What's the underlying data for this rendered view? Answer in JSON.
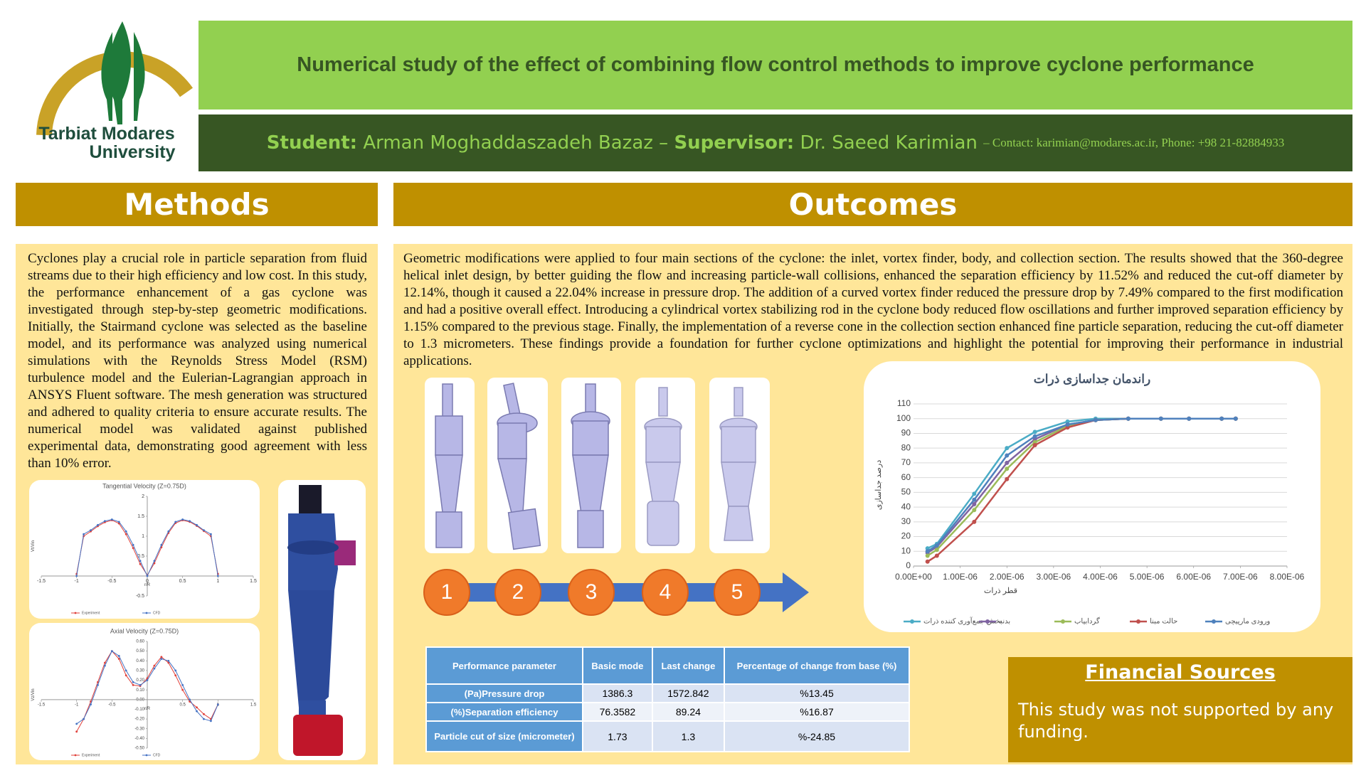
{
  "logo": {
    "line1": "Tarbiat Modares",
    "line2": "University"
  },
  "header": {
    "title": "Numerical study of the effect of combining flow control methods to improve cyclone performance",
    "student_label": "Student:",
    "student": "Arman Moghaddaszadeh Bazaz –",
    "supervisor_label": "Supervisor:",
    "supervisor": "Dr. Saeed Karimian",
    "contact": "– Contact: karimian@modares.ac.ir, Phone: +98 21-82884933"
  },
  "methods": {
    "title": "Methods",
    "text": "Cyclones play a crucial role in particle separation from fluid streams due to their high efficiency and low cost. In this study, the performance enhancement of a gas cyclone was investigated through step-by-step geometric modifications. Initially, the Stairmand cyclone was selected as the baseline model, and its performance was analyzed using numerical simulations with the Reynolds Stress Model (RSM) turbulence model and the Eulerian-Lagrangian approach in ANSYS Fluent software. The mesh generation was structured and adhered to quality criteria to ensure accurate results. The numerical model was validated against published experimental data, demonstrating good agreement with less than 10% error."
  },
  "outcomes": {
    "title": "Outcomes",
    "text": "Geometric modifications were applied to four main sections of the cyclone: the inlet, vortex finder, body, and collection section. The results showed that the 360-degree helical inlet design, by better guiding the flow and increasing particle-wall collisions, enhanced the separation efficiency by 11.52% and reduced the cut-off diameter by 12.14%, though it caused a 22.04% increase in pressure drop. The addition of a curved vortex finder reduced the pressure drop by 7.49% compared to the first modification and had a positive overall effect. Introducing a cylindrical vortex stabilizing rod in the cyclone body reduced flow oscillations and further improved separation efficiency by 1.15% compared to the previous stage. Finally, the implementation of a reverse cone in the collection section enhanced fine particle separation, reducing the cut-off diameter to 1.3 micrometers. These findings provide a foundation for further cyclone optimizations and highlight the potential for improving their performance in industrial applications.",
    "steps": [
      "1",
      "2",
      "3",
      "4",
      "5"
    ]
  },
  "table": {
    "headers": [
      "Performance parameter",
      "Basic mode",
      "Last change",
      "Percentage of change from base (%)"
    ],
    "rows": [
      [
        "(Pa)Pressure drop",
        "1386.3",
        "1572.842",
        "%13.45"
      ],
      [
        "(%)Separation efficiency",
        "76.3582",
        "89.24",
        "%16.87"
      ],
      [
        "Particle cut of size (micrometer)",
        "1.73",
        "1.3",
        "%-24.85"
      ]
    ]
  },
  "financial": {
    "title": "Financial Sources",
    "text": "This study was not supported by any funding."
  },
  "chart_data": [
    {
      "type": "line",
      "title": "Tangential Velocity (Z=0.75D)",
      "xlabel": "r/R",
      "ylabel": "Vt/Vin",
      "x": [
        -1,
        -0.9,
        -0.8,
        -0.7,
        -0.6,
        -0.5,
        -0.4,
        -0.3,
        -0.2,
        -0.1,
        0,
        0.1,
        0.2,
        0.3,
        0.4,
        0.5,
        0.6,
        0.7,
        0.8,
        0.9,
        1
      ],
      "series": [
        {
          "name": "Experiment",
          "color": "#e0403a",
          "values": [
            0.05,
            1.0,
            1.12,
            1.25,
            1.35,
            1.4,
            1.32,
            1.05,
            0.7,
            0.3,
            0.02,
            0.32,
            0.72,
            1.08,
            1.33,
            1.4,
            1.36,
            1.26,
            1.13,
            1.0,
            0.05
          ]
        },
        {
          "name": "CFD",
          "color": "#4472c4",
          "values": [
            0,
            1.05,
            1.15,
            1.28,
            1.38,
            1.42,
            1.36,
            1.12,
            0.78,
            0.38,
            0,
            0.38,
            0.78,
            1.12,
            1.36,
            1.42,
            1.38,
            1.28,
            1.15,
            1.05,
            0
          ]
        }
      ],
      "xlim": [
        -1.5,
        1.5
      ],
      "ylim": [
        -0.5,
        2
      ],
      "xticks": [
        -1.5,
        -1,
        -0.5,
        0,
        0.5,
        1,
        1.5
      ],
      "yticks": [
        -0.5,
        0.5,
        1,
        1.5,
        2
      ],
      "grid": false,
      "axes_at_zero": true,
      "legend": "bottom"
    },
    {
      "type": "line",
      "title": "Axial Velocity (Z=0.75D)",
      "xlabel": "r/R",
      "ylabel": "Vz/Vin",
      "x": [
        -1,
        -0.9,
        -0.8,
        -0.7,
        -0.6,
        -0.5,
        -0.4,
        -0.3,
        -0.2,
        -0.1,
        0,
        0.1,
        0.2,
        0.3,
        0.4,
        0.5,
        0.6,
        0.7,
        0.8,
        0.9,
        1
      ],
      "series": [
        {
          "name": "Experiment",
          "color": "#e0403a",
          "values": [
            -0.33,
            -0.2,
            -0.02,
            0.18,
            0.38,
            0.5,
            0.42,
            0.25,
            0.15,
            0.14,
            0.22,
            0.35,
            0.44,
            0.38,
            0.25,
            0.1,
            -0.02,
            -0.08,
            -0.15,
            -0.2,
            -0.05
          ]
        },
        {
          "name": "CFD",
          "color": "#4472c4",
          "values": [
            -0.25,
            -0.2,
            -0.05,
            0.15,
            0.35,
            0.5,
            0.45,
            0.3,
            0.18,
            0.15,
            0.2,
            0.32,
            0.42,
            0.4,
            0.3,
            0.15,
            0.0,
            -0.12,
            -0.2,
            -0.22,
            -0.05
          ]
        }
      ],
      "xlim": [
        -1.5,
        1.5
      ],
      "ylim": [
        -0.5,
        0.6
      ],
      "xticks": [
        -1.5,
        -1,
        -0.5,
        0.5,
        1,
        1.5
      ],
      "yticks": [
        {
          "value": 0.6,
          "label": "0.60"
        },
        {
          "value": 0.5,
          "label": "0.50"
        },
        {
          "value": 0.4,
          "label": "0.40"
        },
        {
          "value": 0.3,
          "label": "0.30"
        },
        {
          "value": 0.2,
          "label": "0.20"
        },
        {
          "value": 0.1,
          "label": "0.10"
        },
        {
          "value": 0,
          "label": "0.00"
        },
        {
          "value": -0.1,
          "label": "-0.10"
        },
        {
          "value": -0.2,
          "label": "-0.20"
        },
        {
          "value": -0.3,
          "label": "-0.30"
        },
        {
          "value": -0.4,
          "label": "-0.40"
        },
        {
          "value": -0.5,
          "label": "-0.50"
        }
      ],
      "grid": false,
      "axes_at_zero": true,
      "legend": "bottom"
    },
    {
      "type": "line",
      "title": "راندمان جداسازی ذرات",
      "xlabel": "قطر ذرات",
      "ylabel": "درصد جداسازی",
      "x": [
        3e-07,
        5e-07,
        1.3e-06,
        2e-06,
        2.6e-06,
        3.3e-06,
        3.9e-06,
        4.6e-06,
        5.3e-06,
        5.9e-06,
        6.6e-06,
        6.9e-06
      ],
      "series": [
        {
          "name": "بخش جمع‌آوری کننده ذرات",
          "color": "#4bacc6",
          "values": [
            12,
            15,
            49,
            80,
            91,
            98,
            100,
            100,
            100,
            100,
            100,
            100
          ]
        },
        {
          "name": "بدنه",
          "color": "#8064a2",
          "values": [
            9,
            13,
            42,
            70,
            86,
            96,
            99,
            100,
            100,
            100,
            100,
            100
          ]
        },
        {
          "name": "گردابیاب",
          "color": "#9bbb59",
          "values": [
            7,
            11,
            38,
            66,
            84,
            95,
            99,
            100,
            100,
            100,
            100,
            100
          ]
        },
        {
          "name": "حالت مبنا",
          "color": "#c0504d",
          "values": [
            3,
            7,
            30,
            59,
            82,
            94,
            99,
            100,
            100,
            100,
            100,
            100
          ]
        },
        {
          "name": "ورودی مارپیچی",
          "color": "#4f81bd",
          "values": [
            10,
            14,
            45,
            75,
            88,
            96,
            99,
            100,
            100,
            100,
            100,
            100
          ]
        }
      ],
      "xlim": [
        0,
        8e-06
      ],
      "ylim": [
        0,
        110
      ],
      "xticks": [
        {
          "value": 0,
          "label": "0.00E+00"
        },
        {
          "value": 1e-06,
          "label": "1.00E-06"
        },
        {
          "value": 2e-06,
          "label": "2.00E-06"
        },
        {
          "value": 3e-06,
          "label": "3.00E-06"
        },
        {
          "value": 4e-06,
          "label": "4.00E-06"
        },
        {
          "value": 5e-06,
          "label": "5.00E-06"
        },
        {
          "value": 6e-06,
          "label": "6.00E-06"
        },
        {
          "value": 7e-06,
          "label": "7.00E-06"
        },
        {
          "value": 8e-06,
          "label": "8.00E-06"
        }
      ],
      "yticks": [
        0,
        10,
        20,
        30,
        40,
        50,
        60,
        70,
        80,
        90,
        100,
        110
      ],
      "grid": true,
      "axes_at_zero": false,
      "legend": "bottom"
    }
  ]
}
